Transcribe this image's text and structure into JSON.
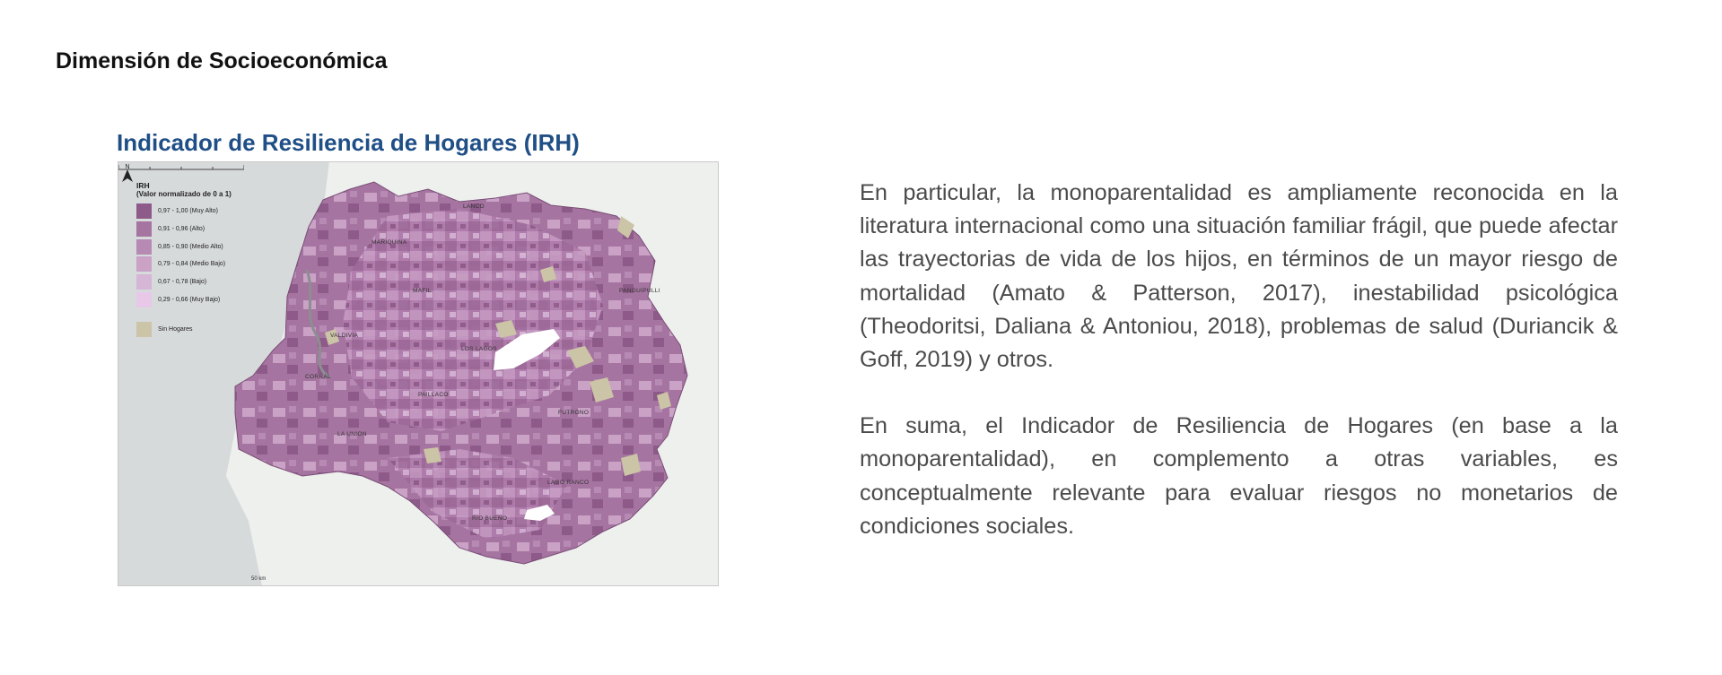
{
  "section_title": "Dimensión de Socioeconómica",
  "map": {
    "title": "Indicador de Resiliencia de Hogares (IRH)",
    "legend": {
      "title": "IRH",
      "subtitle": "(Valor normalizado de 0 a 1)",
      "classes": [
        {
          "label": "0,97 - 1,00 (Muy Alto)",
          "color": "#8e5a89"
        },
        {
          "label": "0,91 - 0,96 (Alto)",
          "color": "#a574a0"
        },
        {
          "label": "0,85 - 0,90 (Medio Alto)",
          "color": "#b78ab4"
        },
        {
          "label": "0,79 - 0,84 (Medio Bajo)",
          "color": "#c9a2c6"
        },
        {
          "label": "0,67 - 0,78 (Bajo)",
          "color": "#d6b6d6"
        },
        {
          "label": "0,29 - 0,66 (Muy Bajo)",
          "color": "#e8c8e8"
        }
      ],
      "no_households": {
        "label": "Sin Hogares",
        "color": "#cbc4a6"
      }
    },
    "places": {
      "mariquina": "MARIQUINA",
      "lanco": "LANCO",
      "mafil": "MAFIL",
      "panguipulli": "PANGUIPULLI",
      "valdivia": "VALDIVIA",
      "los_lagos": "LOS LAGOS",
      "corral": "CORRAL",
      "paillaco": "PAILLACO",
      "futrono": "FUTRONO",
      "la_union": "LA UNION",
      "lago_ranco": "LAGO RANCO",
      "rio_bueno": "RIO BUENO"
    },
    "scale_label": "50 km",
    "north_label": "N"
  },
  "paragraphs": [
    "En particular, la monoparentalidad es ampliamente reconocida en la literatura internacional como una situación familiar frágil, que puede afectar las trayectorias de vida de los hijos, en términos de un mayor riesgo de mortalidad (Amato & Patterson, 2017), inestabilidad psicológica (Theodoritsi, Daliana & Antoniou, 2018), problemas de salud (Duriancik & Goff, 2019) y otros.",
    "En suma, el Indicador de Resiliencia de Hogares (en base a la monoparentalidad), en complemento a otras variables, es conceptualmente relevante para evaluar riesgos no monetarios de condiciones sociales."
  ]
}
